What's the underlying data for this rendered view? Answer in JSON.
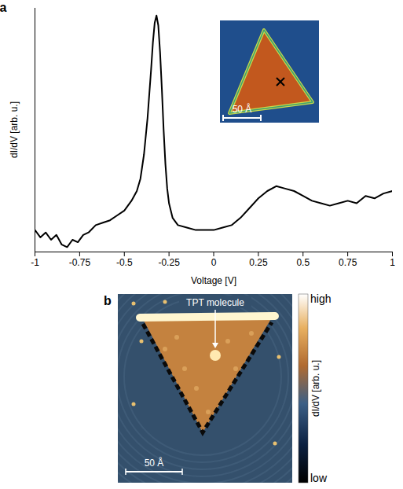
{
  "chart_data": [
    {
      "type": "line",
      "panel_label": "a",
      "x_label": "Voltage [V]",
      "y_label": "dI/dV [arb. u.]",
      "x": [
        -1,
        -0.97,
        -0.94,
        -0.91,
        -0.88,
        -0.85,
        -0.82,
        -0.79,
        -0.76,
        -0.73,
        -0.7,
        -0.66,
        -0.62,
        -0.58,
        -0.54,
        -0.5,
        -0.46,
        -0.43,
        -0.41,
        -0.39,
        -0.37,
        -0.35,
        -0.34,
        -0.33,
        -0.32,
        -0.31,
        -0.3,
        -0.29,
        -0.28,
        -0.27,
        -0.26,
        -0.25,
        -0.23,
        -0.2,
        -0.15,
        -0.1,
        -0.05,
        0,
        0.05,
        0.1,
        0.15,
        0.2,
        0.25,
        0.3,
        0.35,
        0.4,
        0.45,
        0.5,
        0.55,
        0.6,
        0.65,
        0.7,
        0.75,
        0.8,
        0.85,
        0.9,
        0.95,
        1
      ],
      "values": [
        0.09,
        0.06,
        0.08,
        0.05,
        0.07,
        0.03,
        0.02,
        0.05,
        0.04,
        0.07,
        0.08,
        0.11,
        0.12,
        0.13,
        0.15,
        0.17,
        0.21,
        0.25,
        0.3,
        0.4,
        0.55,
        0.75,
        0.86,
        0.94,
        0.97,
        0.93,
        0.82,
        0.67,
        0.5,
        0.36,
        0.26,
        0.2,
        0.14,
        0.11,
        0.1,
        0.09,
        0.09,
        0.09,
        0.1,
        0.11,
        0.14,
        0.18,
        0.22,
        0.25,
        0.27,
        0.26,
        0.25,
        0.23,
        0.21,
        0.2,
        0.19,
        0.2,
        0.21,
        0.2,
        0.23,
        0.22,
        0.24,
        0.25
      ],
      "color": "#000000",
      "xlim": [
        -1,
        1
      ],
      "xticks": [
        -1,
        -0.75,
        -0.5,
        -0.25,
        0,
        0.25,
        0.5,
        0.75,
        1
      ],
      "ylim": [
        0,
        1
      ],
      "tick_labels": "x",
      "inset": {
        "type": "image",
        "scale_bar": "50 Å",
        "marker": "cross"
      }
    },
    {
      "type": "image",
      "panel_label": "b",
      "annotation": "TPT molecule",
      "scale_bar": "50 Å",
      "colorbar_label": "dI/dV [arb. u.]",
      "colorbar_range": [
        0,
        1
      ],
      "colorbar_ticks": [
        {
          "value": 1,
          "label": "high"
        },
        {
          "value": 0,
          "label": "low"
        }
      ]
    }
  ]
}
